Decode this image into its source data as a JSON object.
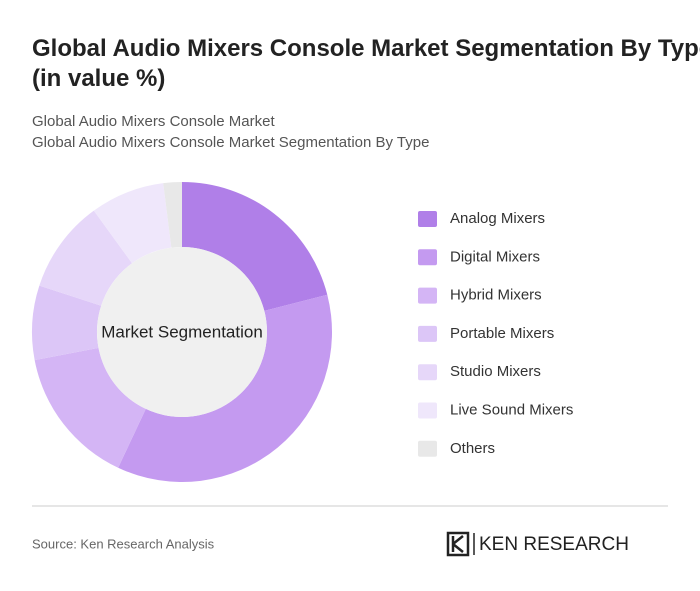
{
  "chart_data": {
    "type": "donut",
    "title": "Global Audio Mixers Console Market Segmentation By Type (in value %)",
    "subtitle": [
      "Global Audio Mixers Console Market",
      "Global Audio Mixers Console Market Segmentation By Type"
    ],
    "center_label": "Market Segmentation",
    "categories": [
      "Analog Mixers",
      "Digital Mixers",
      "Hybrid Mixers",
      "Portable Mixers",
      "Studio Mixers",
      "Live Sound Mixers",
      "Others"
    ],
    "values": [
      21,
      36,
      15,
      8,
      10,
      8,
      2
    ],
    "colors": [
      "#b07fe8",
      "#c49af0",
      "#d4b5f5",
      "#dcc6f7",
      "#e6d7f9",
      "#efe7fb",
      "#e8e8e8"
    ],
    "legend": "right"
  },
  "footer": {
    "source": "Source: Ken Research Analysis",
    "logo": "KEN RESEARCH"
  }
}
